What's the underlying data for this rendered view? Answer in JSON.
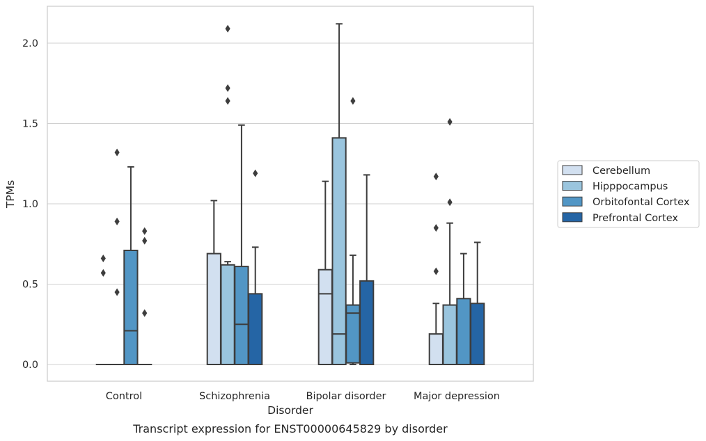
{
  "chart_data": {
    "type": "boxplot",
    "caption": "Transcript expression for ENST00000645829 by disorder",
    "xlabel": "Disorder",
    "ylabel": "TPMs",
    "ylim": [
      -0.1,
      2.23
    ],
    "yticks": [
      0.0,
      0.5,
      1.0,
      1.5,
      2.0
    ],
    "ytick_labels": [
      "0.0",
      "0.5",
      "1.0",
      "1.5",
      "2.0"
    ],
    "grid": "horizontal",
    "legend_position": "right",
    "categories": [
      "Control",
      "Schizophrenia",
      "Bipolar disorder",
      "Major depression"
    ],
    "series": [
      {
        "name": "Cerebellum",
        "color": "#d2e0f0",
        "boxes": [
          {
            "q1": 0.0,
            "median": 0.0,
            "q3": 0.0,
            "whisker_low": 0.0,
            "whisker_high": 0.0,
            "outliers": [
              0.66,
              0.57
            ]
          },
          {
            "q1": 0.0,
            "median": 0.0,
            "q3": 0.69,
            "whisker_low": 0.0,
            "whisker_high": 1.02,
            "outliers": []
          },
          {
            "q1": 0.0,
            "median": 0.44,
            "q3": 0.59,
            "whisker_low": 0.0,
            "whisker_high": 1.14,
            "outliers": []
          },
          {
            "q1": 0.0,
            "median": 0.0,
            "q3": 0.19,
            "whisker_low": 0.0,
            "whisker_high": 0.38,
            "outliers": [
              1.17,
              0.85,
              0.58
            ]
          }
        ]
      },
      {
        "name": "Hipppocampus",
        "color": "#9ac5de",
        "boxes": [
          {
            "q1": 0.0,
            "median": 0.0,
            "q3": 0.0,
            "whisker_low": 0.0,
            "whisker_high": 0.0,
            "outliers": [
              1.32,
              0.89,
              0.45
            ]
          },
          {
            "q1": 0.0,
            "median": 0.0,
            "q3": 0.62,
            "whisker_low": 0.0,
            "whisker_high": 0.64,
            "outliers": [
              2.09,
              1.72,
              1.64
            ]
          },
          {
            "q1": 0.0,
            "median": 0.19,
            "q3": 1.41,
            "whisker_low": 0.0,
            "whisker_high": 2.12,
            "outliers": []
          },
          {
            "q1": 0.0,
            "median": 0.0,
            "q3": 0.37,
            "whisker_low": 0.0,
            "whisker_high": 0.88,
            "outliers": [
              1.51,
              1.01
            ]
          }
        ]
      },
      {
        "name": "Orbitofontal Cortex",
        "color": "#5296c5",
        "boxes": [
          {
            "q1": 0.0,
            "median": 0.21,
            "q3": 0.71,
            "whisker_low": 0.0,
            "whisker_high": 1.23,
            "outliers": []
          },
          {
            "q1": 0.0,
            "median": 0.25,
            "q3": 0.61,
            "whisker_low": 0.0,
            "whisker_high": 1.49,
            "outliers": []
          },
          {
            "q1": 0.01,
            "median": 0.32,
            "q3": 0.37,
            "whisker_low": 0.0,
            "whisker_high": 0.68,
            "outliers": [
              1.64
            ]
          },
          {
            "q1": 0.0,
            "median": 0.0,
            "q3": 0.41,
            "whisker_low": 0.0,
            "whisker_high": 0.69,
            "outliers": []
          }
        ]
      },
      {
        "name": "Prefrontal Cortex",
        "color": "#2565a5",
        "boxes": [
          {
            "q1": 0.0,
            "median": 0.0,
            "q3": 0.0,
            "whisker_low": 0.0,
            "whisker_high": 0.0,
            "outliers": [
              0.83,
              0.77,
              0.32
            ]
          },
          {
            "q1": 0.0,
            "median": 0.0,
            "q3": 0.44,
            "whisker_low": 0.0,
            "whisker_high": 0.73,
            "outliers": [
              1.19
            ]
          },
          {
            "q1": 0.0,
            "median": 0.0,
            "q3": 0.52,
            "whisker_low": 0.0,
            "whisker_high": 1.18,
            "outliers": []
          },
          {
            "q1": 0.0,
            "median": 0.0,
            "q3": 0.38,
            "whisker_low": 0.0,
            "whisker_high": 0.76,
            "outliers": []
          }
        ]
      }
    ]
  }
}
